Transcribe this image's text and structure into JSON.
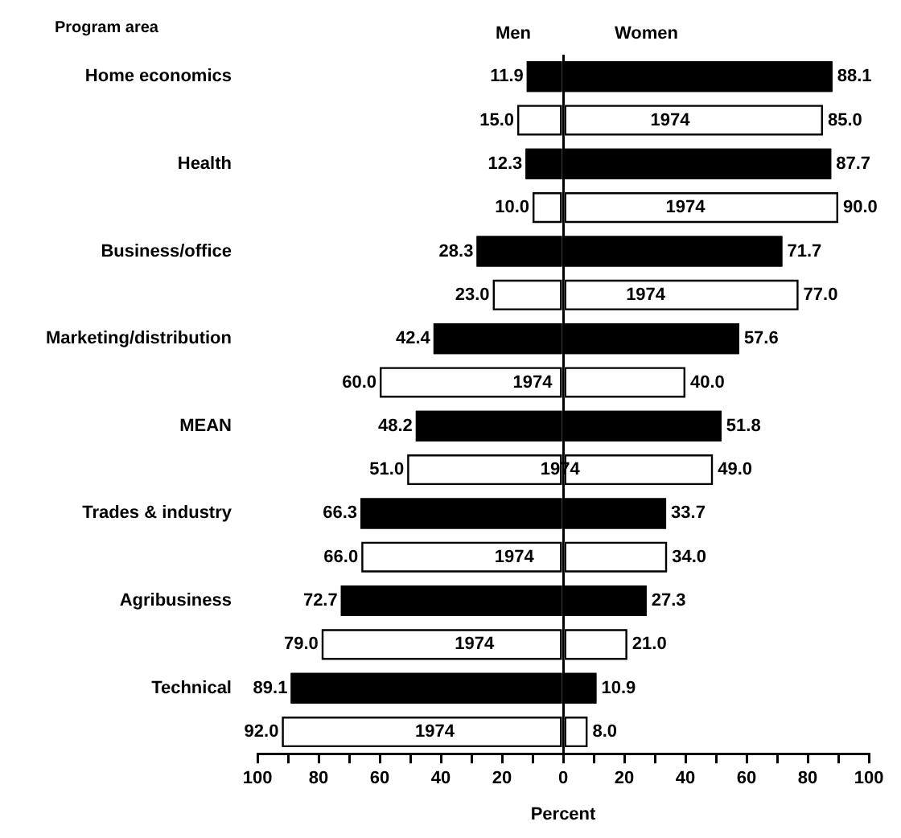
{
  "chart_data": {
    "type": "bar",
    "orientation": "horizontal",
    "xlabel": "Percent",
    "ylabel": "Program area",
    "categories": [
      "Home economics",
      null,
      "Health",
      null,
      "Business/office",
      null,
      "Marketing/distribution",
      null,
      "MEAN",
      null,
      "Trades & industry",
      null,
      "Agribusiness",
      null,
      "Technical",
      null
    ],
    "series": [
      {
        "name": "Men",
        "colors": [
          "#000000",
          "#ffffff",
          "#000000",
          "#ffffff",
          "#000000",
          "#ffffff",
          "#000000",
          "#ffffff",
          "#000000",
          "#ffffff",
          "#000000",
          "#ffffff",
          "#000000",
          "#ffffff",
          "#000000",
          "#ffffff"
        ],
        "values": [
          11.9,
          15.0,
          12.3,
          10.0,
          28.3,
          23.0,
          42.4,
          60.0,
          48.2,
          51.0,
          66.3,
          66.0,
          72.7,
          79.0,
          89.1,
          92.0
        ],
        "base": [
          -11.9,
          -15.0,
          -12.3,
          -10.0,
          -28.3,
          -23.0,
          -42.4,
          -60.0,
          -48.2,
          -51.0,
          -66.3,
          -66.0,
          -72.7,
          -79.0,
          -89.1,
          -92.0
        ],
        "value_labels": [
          "11.9",
          "15.0",
          "12.3",
          "10.0",
          "28.3",
          "23.0",
          "42.4",
          "60.0",
          "48.2",
          "51.0",
          "66.3",
          "66.0",
          "72.7",
          "79.0",
          "89.1",
          "92.0"
        ]
      },
      {
        "name": "Women",
        "colors": [
          "#000000",
          "#ffffff",
          "#000000",
          "#ffffff",
          "#000000",
          "#ffffff",
          "#000000",
          "#ffffff",
          "#000000",
          "#ffffff",
          "#000000",
          "#ffffff",
          "#000000",
          "#ffffff",
          "#000000",
          "#ffffff"
        ],
        "values": [
          88.1,
          85.0,
          87.7,
          90.0,
          71.7,
          77.0,
          57.6,
          40.0,
          51.8,
          49.0,
          33.7,
          34.0,
          27.3,
          21.0,
          10.9,
          8.0
        ],
        "base": [
          0,
          0,
          0,
          0,
          0,
          0,
          0,
          0,
          0,
          0,
          0,
          0,
          0,
          0,
          0,
          0
        ],
        "value_labels": [
          "88.1",
          "85.0",
          "87.7",
          "90.0",
          "71.7",
          "77.0",
          "57.6",
          "40.0",
          "51.8",
          "49.0",
          "33.7",
          "34.0",
          "27.3",
          "21.0",
          "10.9",
          "8.0"
        ]
      }
    ],
    "annotations": [
      "1974",
      "1974",
      "1974",
      "1974",
      "1974",
      "1974",
      "1974",
      "1974"
    ],
    "xlim": [
      -100,
      100
    ],
    "xticks": [
      {
        "value": -100,
        "label": "100"
      },
      {
        "value": -90,
        "label": null
      },
      {
        "value": -80,
        "label": "80"
      },
      {
        "value": -70,
        "label": null
      },
      {
        "value": -60,
        "label": "60"
      },
      {
        "value": -50,
        "label": null
      },
      {
        "value": -40,
        "label": "40"
      },
      {
        "value": -30,
        "label": null
      },
      {
        "value": -20,
        "label": "20"
      },
      {
        "value": -10,
        "label": null
      },
      0,
      {
        "value": 10,
        "label": null
      },
      20,
      {
        "value": 30,
        "label": null
      },
      40,
      {
        "value": 50,
        "label": null
      },
      60,
      {
        "value": 70,
        "label": null
      },
      80,
      {
        "value": 90,
        "label": null
      },
      100
    ]
  }
}
